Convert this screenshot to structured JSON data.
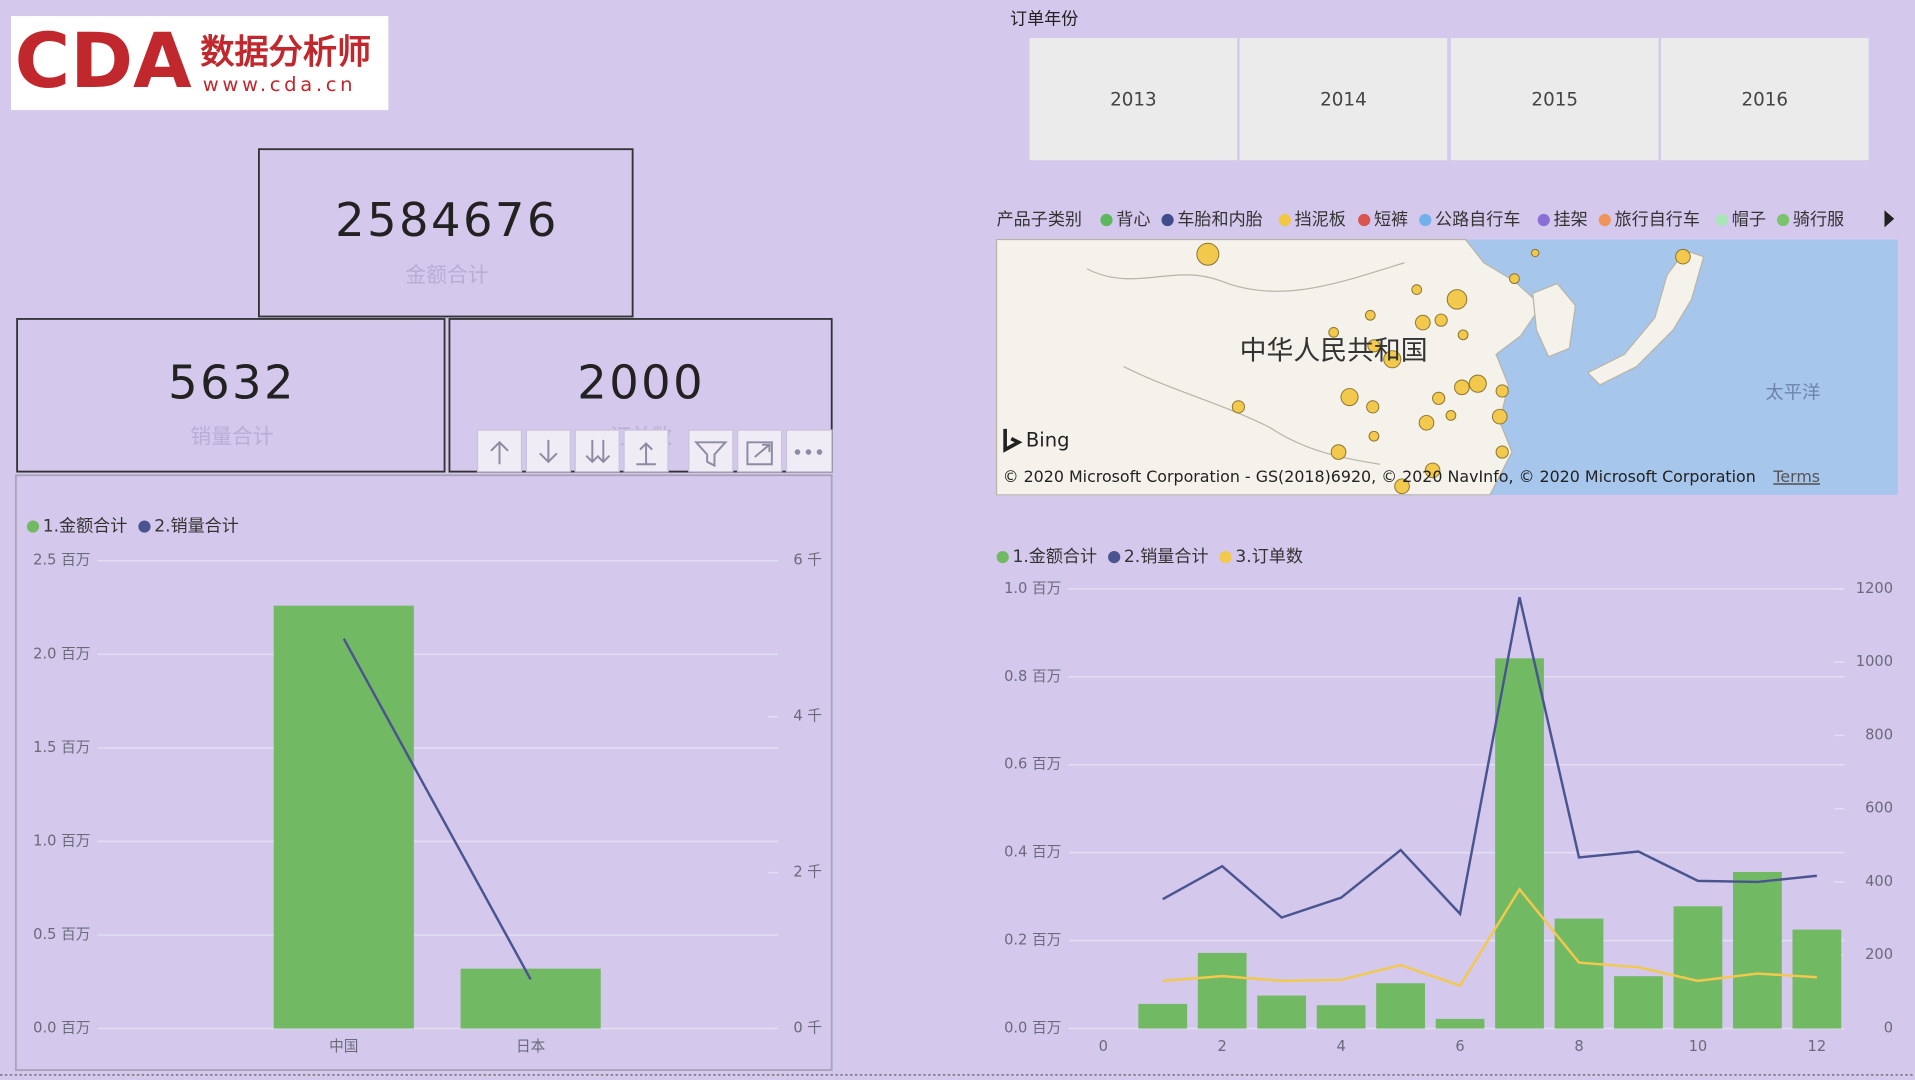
{
  "logo": {
    "brand": "CDA",
    "name": "数据分析师",
    "url": "www.cda.cn"
  },
  "kpis": [
    {
      "value": 2584676,
      "label": "金额合计"
    },
    {
      "value": 5632,
      "label": "销量合计"
    },
    {
      "value": 2000,
      "label": "订单数"
    }
  ],
  "slicer": {
    "title": "订单年份",
    "items": [
      "2013",
      "2014",
      "2015",
      "2016"
    ]
  },
  "map": {
    "legend_title": "产品子类别",
    "legend": [
      {
        "name": "背心",
        "color": "#5cb85c"
      },
      {
        "name": "车胎和内胎",
        "color": "#3f4d8a"
      },
      {
        "name": "挡泥板",
        "color": "#f2c744"
      },
      {
        "name": "短裤",
        "color": "#d9534f"
      },
      {
        "name": "公路自行车",
        "color": "#6fb1e8"
      },
      {
        "name": "挂架",
        "color": "#8a6fd4"
      },
      {
        "name": "旅行自行车",
        "color": "#f0955a"
      },
      {
        "name": "帽子",
        "color": "#a8e6b8"
      },
      {
        "name": "骑行服",
        "color": "#7cc26a"
      }
    ],
    "country": "中华人民共和国",
    "ocean": "太平洋",
    "provider": "Bing",
    "copyright": "© 2020 Microsoft Corporation - GS(2018)6920, © 2020 NavInfo, © 2020 Microsoft Corporation",
    "terms": "Terms"
  },
  "chart_data": [
    {
      "type": "combo",
      "categories": [
        "中国",
        "日本"
      ],
      "series": [
        {
          "name": "1.金额合计",
          "color": "#72b964",
          "type": "bar",
          "values": [
            2260000,
            320000
          ]
        },
        {
          "name": "2.销量合计",
          "color": "#4a5590",
          "type": "line",
          "axis": "y2",
          "values": [
            5000,
            630
          ]
        }
      ],
      "ylim": [
        0,
        2500000
      ],
      "yticks": [
        {
          "value": 0,
          "label": "0.0 百万"
        },
        {
          "value": 500000,
          "label": "0.5 百万"
        },
        {
          "value": 1000000,
          "label": "1.0 百万"
        },
        {
          "value": 1500000,
          "label": "1.5 百万"
        },
        {
          "value": 2000000,
          "label": "2.0 百万"
        },
        {
          "value": 2500000,
          "label": "2.5 百万"
        }
      ],
      "y2lim": [
        0,
        6000
      ],
      "y2ticks": [
        {
          "value": 0,
          "label": "0 千"
        },
        {
          "value": 2000,
          "label": "2 千"
        },
        {
          "value": 4000,
          "label": "4 千"
        },
        {
          "value": 6000,
          "label": "6 千"
        }
      ],
      "grid": true,
      "legend": "top-left"
    },
    {
      "type": "combo",
      "x": [
        1,
        2,
        3,
        4,
        5,
        6,
        7,
        8,
        9,
        10,
        11,
        12
      ],
      "xlim": [
        -0.5,
        12.5
      ],
      "xticks": [
        0,
        2,
        4,
        6,
        8,
        10,
        12
      ],
      "series": [
        {
          "name": "1.金额合计",
          "color": "#72b964",
          "type": "bar",
          "values": [
            56000,
            172000,
            75000,
            53000,
            103000,
            22000,
            842000,
            250000,
            119000,
            278000,
            356000,
            225000
          ]
        },
        {
          "name": "2.销量合计",
          "color": "#4a5590",
          "type": "line",
          "axis": "y2",
          "values": [
            353,
            443,
            303,
            357,
            487,
            313,
            1177,
            467,
            483,
            403,
            400,
            417
          ]
        },
        {
          "name": "3.订单数",
          "color": "#f2c94c",
          "type": "line",
          "axis": "y2",
          "values": [
            130,
            143,
            130,
            133,
            173,
            117,
            380,
            180,
            167,
            130,
            150,
            140
          ]
        }
      ],
      "ylim": [
        0,
        1000000
      ],
      "yticks": [
        {
          "value": 0,
          "label": "0.0 百万"
        },
        {
          "value": 200000,
          "label": "0.2 百万"
        },
        {
          "value": 400000,
          "label": "0.4 百万"
        },
        {
          "value": 600000,
          "label": "0.6 百万"
        },
        {
          "value": 800000,
          "label": "0.8 百万"
        },
        {
          "value": 1000000,
          "label": "1.0 百万"
        }
      ],
      "y2lim": [
        0,
        1200
      ],
      "y2ticks": [
        0,
        200,
        400,
        600,
        800,
        1000,
        1200
      ],
      "grid": true,
      "legend": "top-left"
    }
  ]
}
